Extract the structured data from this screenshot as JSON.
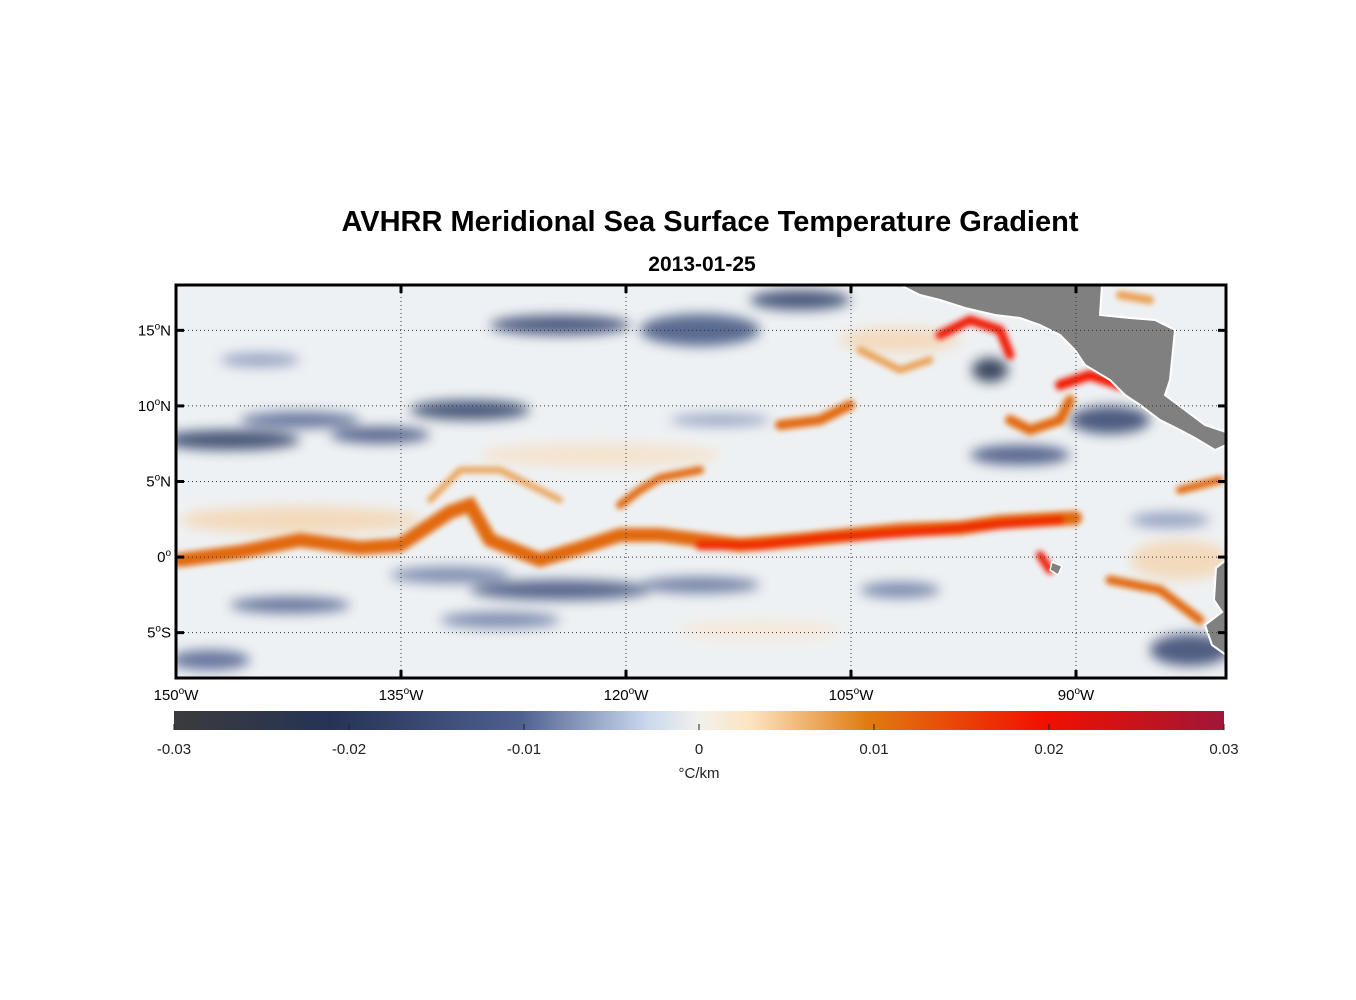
{
  "title": "AVHRR Meridional Sea Surface Temperature Gradient",
  "subtitle": "2013-01-25",
  "map": {
    "lon_range": [
      -150,
      -80
    ],
    "lat_range": [
      -8,
      18
    ],
    "lon_ticks": [
      {
        "deg": "150",
        "hemi": "W"
      },
      {
        "deg": "135",
        "hemi": "W"
      },
      {
        "deg": "120",
        "hemi": "W"
      },
      {
        "deg": "105",
        "hemi": "W"
      },
      {
        "deg": "90",
        "hemi": "W"
      }
    ],
    "lat_ticks": [
      {
        "deg": "15",
        "hemi": "N"
      },
      {
        "deg": "10",
        "hemi": "N"
      },
      {
        "deg": "5",
        "hemi": "N"
      },
      {
        "deg": "0",
        "hemi": ""
      },
      {
        "deg": "5",
        "hemi": "S"
      }
    ],
    "grid": "dotted",
    "land_color": "#808080"
  },
  "colorbar": {
    "ticks": [
      "-0.03",
      "-0.02",
      "-0.01",
      "0",
      "0.01",
      "0.02",
      "0.03"
    ],
    "unit": "°C/km",
    "colors": [
      "#3b3b3b",
      "#233458",
      "#5a6a96",
      "#d9e6f2",
      "#f3efe9",
      "#fde2be",
      "#e07c10",
      "#f20f00",
      "#a01638"
    ]
  }
}
